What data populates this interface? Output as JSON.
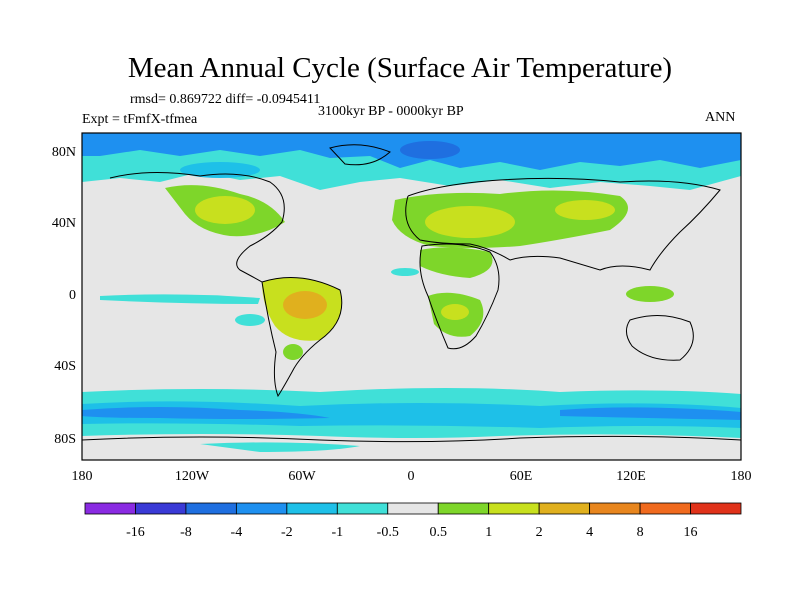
{
  "title": "Mean Annual Cycle (Surface Air Temperature)",
  "stats": "rmsd= 0.869722 diff= -0.0945411",
  "period": "3100kyr BP - 0000kyr BP",
  "experiment": "Expt = tFmfX-tfmea",
  "season": "ANN",
  "lat_ticks": [
    "80N",
    "40N",
    "0",
    "40S",
    "80S"
  ],
  "lon_ticks": [
    "180",
    "120W",
    "60W",
    "0",
    "60E",
    "120E",
    "180"
  ],
  "colorbar": {
    "labels": [
      "-16",
      "-8",
      "-4",
      "-2",
      "-1",
      "-0.5",
      "0.5",
      "1",
      "2",
      "4",
      "8",
      "16"
    ],
    "colors": [
      "#8a2be2",
      "#3a3ad6",
      "#1f6fe0",
      "#1e90f0",
      "#1ec0e8",
      "#40e0d8",
      "#e6e6e6",
      "#7ed62a",
      "#c8e01e",
      "#e0b01e",
      "#e8861e",
      "#f06a1e",
      "#e0321a"
    ]
  },
  "map_colors": {
    "background": "#e6e6e6",
    "coast": "#000000"
  }
}
